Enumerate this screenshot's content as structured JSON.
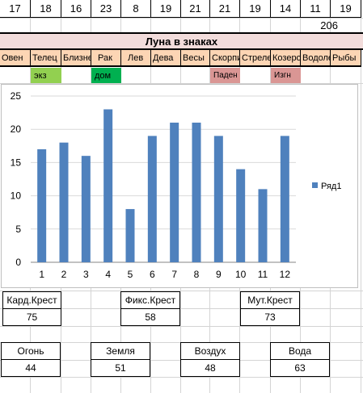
{
  "top_numbers": [
    "17",
    "18",
    "16",
    "23",
    "8",
    "19",
    "21",
    "21",
    "19",
    "14",
    "11",
    "19"
  ],
  "total": "206",
  "title": "Луна в знаках",
  "signs": [
    "Овен",
    "Телец",
    "Близнецы",
    "Рак",
    "Лев",
    "Дева",
    "Весы",
    "Скорпион",
    "Стрелец",
    "Козерог",
    "Водолей",
    "Рыбы"
  ],
  "tags": {
    "exalt": "экз",
    "home": "дом",
    "fall": "Паден",
    "exile": "Изгн"
  },
  "colors": {
    "bar": "#4f81bd",
    "exalt": "#92d050",
    "home": "#00b050",
    "fall_exile": "#da9694",
    "title_bg": "#f2dcdb",
    "sign_bg": "#fcd5b4"
  },
  "chart_data": {
    "type": "bar",
    "categories": [
      "1",
      "2",
      "3",
      "4",
      "5",
      "6",
      "7",
      "8",
      "9",
      "10",
      "11",
      "12"
    ],
    "series": [
      {
        "name": "Ряд1",
        "values": [
          17,
          18,
          16,
          23,
          8,
          19,
          21,
          21,
          19,
          14,
          11,
          19
        ]
      }
    ],
    "yticks": [
      "0",
      "5",
      "10",
      "15",
      "20",
      "25"
    ],
    "ylim": [
      0,
      25
    ],
    "grid": true,
    "legend": "right"
  },
  "crosses": [
    {
      "label": "Кард.Крест",
      "value": "75"
    },
    {
      "label": "Фикс.Крест",
      "value": "58"
    },
    {
      "label": "Мут.Крест",
      "value": "73"
    }
  ],
  "elements": [
    {
      "label": "Огонь",
      "value": "44"
    },
    {
      "label": "Земля",
      "value": "51"
    },
    {
      "label": "Воздух",
      "value": "48"
    },
    {
      "label": "Вода",
      "value": "63"
    }
  ]
}
